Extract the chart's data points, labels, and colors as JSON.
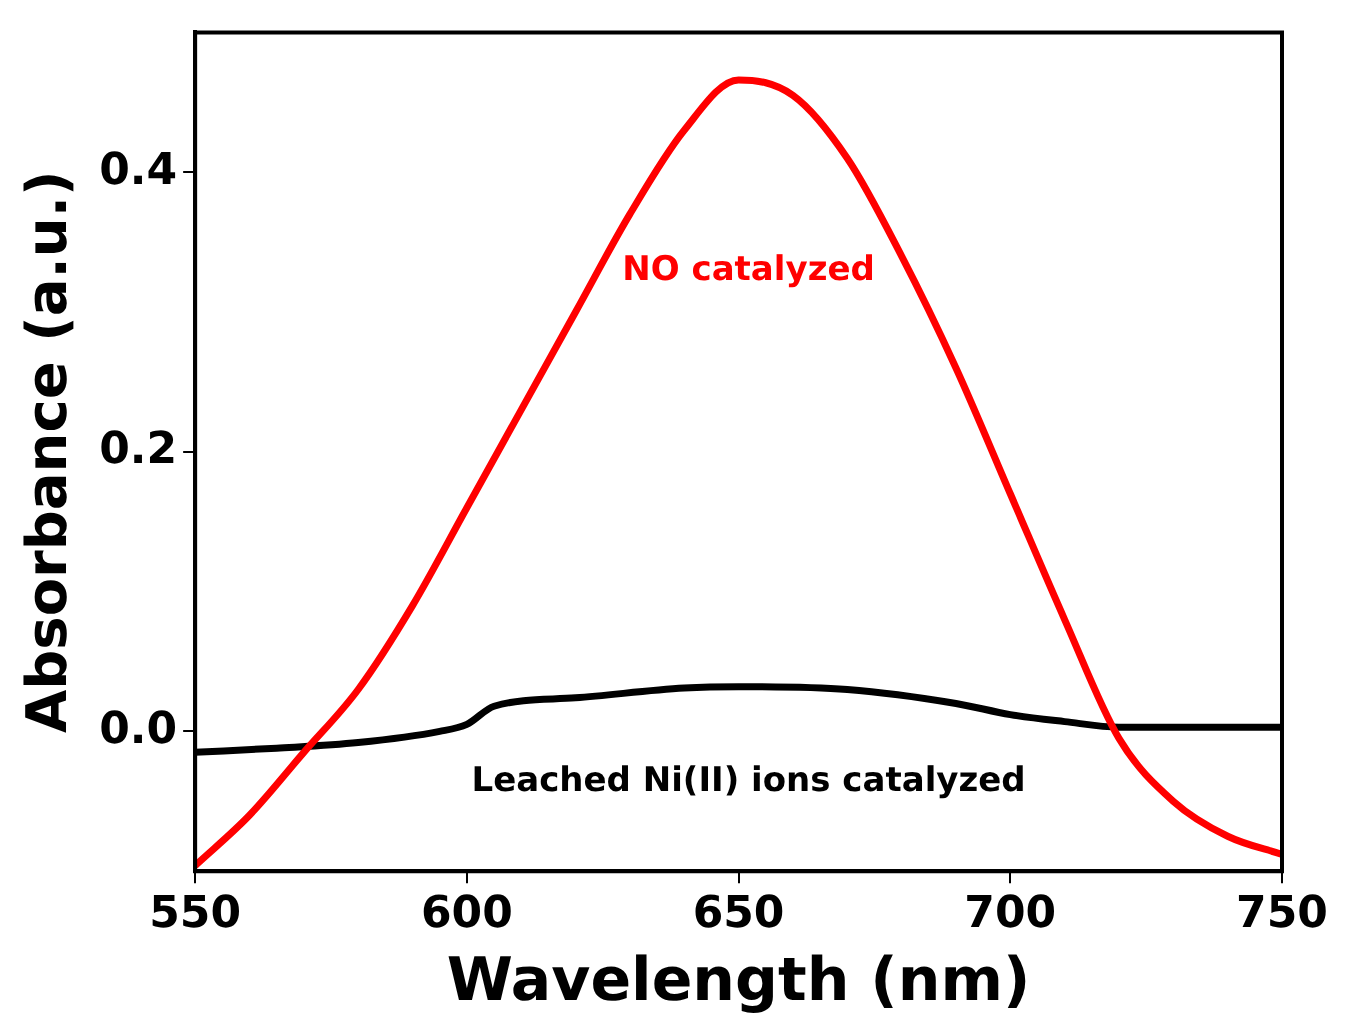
{
  "chart_data": {
    "type": "line",
    "xlabel": "Wavelength (nm)",
    "ylabel": "Absorbance (a.u.)",
    "xlim": [
      550,
      750
    ],
    "xticks": [
      550,
      600,
      650,
      700,
      750
    ],
    "ylim": [
      -0.1,
      0.5
    ],
    "yticks": [
      {
        "value": 0,
        "label": "0.0"
      },
      0.2,
      0.4
    ],
    "grid": false,
    "legend": false,
    "marker": "none",
    "line_style": "solid",
    "series": [
      {
        "name": "NO catalyzed",
        "color": "#ff0000",
        "x": [
          550,
          560,
          570,
          580,
          590,
          600,
          610,
          620,
          630,
          640,
          650,
          660,
          670,
          680,
          690,
          700,
          710,
          720,
          730,
          740,
          750
        ],
        "values": [
          -0.096,
          -0.06,
          -0.015,
          0.03,
          0.09,
          0.16,
          0.23,
          0.3,
          0.37,
          0.43,
          0.466,
          0.455,
          0.41,
          0.34,
          0.26,
          0.17,
          0.08,
          -0.005,
          -0.05,
          -0.075,
          -0.088
        ]
      },
      {
        "name": "Leached Ni(II) ions catalyzed",
        "color": "#000000",
        "x": [
          550,
          565,
          580,
          595,
          600,
          605,
          620,
          640,
          650,
          670,
          690,
          700,
          710,
          720,
          735,
          750
        ],
        "values": [
          -0.015,
          -0.012,
          -0.008,
          0,
          0.005,
          0.018,
          0.024,
          0.031,
          0.032,
          0.03,
          0.02,
          0.012,
          0.007,
          0.003,
          0.003,
          0.003
        ]
      }
    ]
  }
}
